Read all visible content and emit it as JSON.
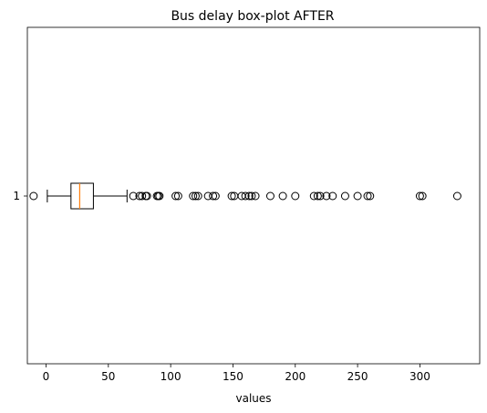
{
  "chart_data": {
    "type": "boxplot",
    "orientation": "horizontal",
    "title": "Bus delay box-plot AFTER",
    "xlabel": "values",
    "ylabel": "",
    "xlim": [
      -15,
      348
    ],
    "x_ticks": [
      0,
      50,
      100,
      150,
      200,
      250,
      300
    ],
    "y_ticks": [
      "1"
    ],
    "grid": false,
    "colors": {
      "box": "#000000",
      "median": "#ff7f0e",
      "flier": "#000000"
    },
    "box": {
      "label": "1",
      "whisker_low": 1,
      "q1": 20,
      "median": 27,
      "q3": 38,
      "whisker_high": 65,
      "fliers": [
        -10,
        70,
        75,
        77,
        80,
        81,
        89,
        90,
        91,
        104,
        106,
        118,
        120,
        122,
        130,
        134,
        136,
        149,
        151,
        157,
        160,
        163,
        165,
        168,
        180,
        190,
        200,
        215,
        218,
        220,
        225,
        230,
        240,
        250,
        258,
        260,
        300,
        302,
        330
      ]
    }
  }
}
